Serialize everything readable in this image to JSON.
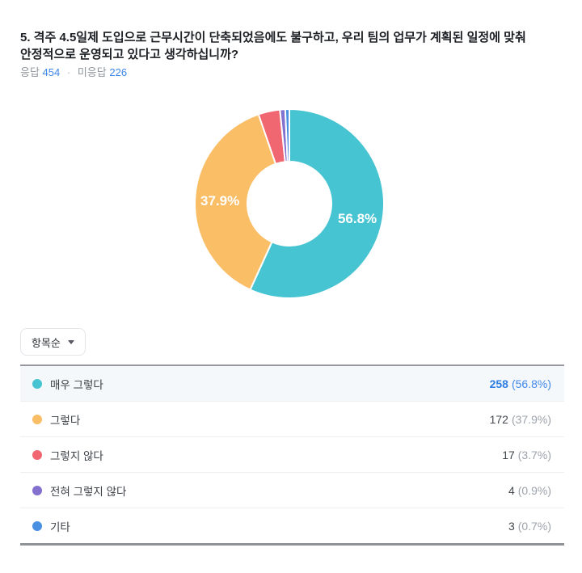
{
  "colors": {
    "accent": "#3d86e8",
    "highlight_row_bg": "#f5f8fa",
    "table_border_top": "#97999e",
    "table_border_bottom": "#8f9297"
  },
  "question": {
    "title": "5. 격주 4.5일제 도입으로 근무시간이 단축되었음에도 불구하고, 우리 팀의 업무가 계획된 일정에 맞춰 안정적으로 운영되고 있다고 생각하십니까?",
    "title_lines": [
      "5. 격주 4.5일제 도입으로 근무시간이 단축되었음에도 불구하고, 우리 팀의 업무가 계획된 일정에 맞춰",
      "안정적으로 운영되고 있다고 생각하십니까?"
    ],
    "stats": {
      "answered_label": "응답",
      "answered_count": "454",
      "separator": "·",
      "unanswered_label": "미응답",
      "unanswered_count": "226"
    }
  },
  "sort_dropdown": {
    "label": "항목순"
  },
  "chart_data": {
    "type": "pie",
    "donut": true,
    "title": "",
    "categories": [
      "매우 그렇다",
      "그렇다",
      "그렇지 않다",
      "전혀 그렇지 않다",
      "기타"
    ],
    "values": [
      258,
      172,
      17,
      4,
      3
    ],
    "percents": [
      56.8,
      37.9,
      3.7,
      0.9,
      0.7
    ],
    "colors": [
      "#47C4D2",
      "#F9BE66",
      "#F06671",
      "#8470CE",
      "#4A90E2"
    ],
    "slice_labels": [
      "56.8%",
      "37.9%",
      "",
      "",
      ""
    ],
    "label_color": "#ffffff",
    "start_angle_deg": 0,
    "direction": "clockwise",
    "legend_position": "none"
  },
  "table": {
    "rows": [
      {
        "label": "매우 그렇다",
        "count": "258",
        "percent": "(56.8%)",
        "highlighted": true
      },
      {
        "label": "그렇다",
        "count": "172",
        "percent": "(37.9%)",
        "highlighted": false
      },
      {
        "label": "그렇지 않다",
        "count": "17",
        "percent": "(3.7%)",
        "highlighted": false
      },
      {
        "label": "전혀 그렇지 않다",
        "count": "4",
        "percent": "(0.9%)",
        "highlighted": false
      },
      {
        "label": "기타",
        "count": "3",
        "percent": "(0.7%)",
        "highlighted": false
      }
    ]
  }
}
